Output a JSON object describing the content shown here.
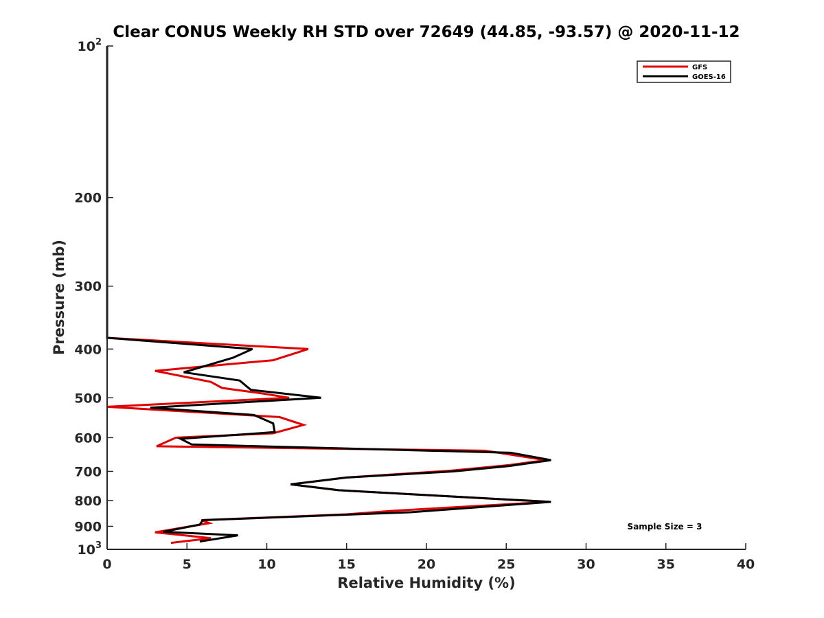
{
  "chart_data": {
    "type": "line",
    "title": "Clear CONUS Weekly RH STD over 72649 (44.85, -93.57) @ 2020-11-12",
    "xlabel": "Relative Humidity (%)",
    "ylabel": "Pressure (mb)",
    "xlim": [
      0,
      40
    ],
    "ylim": [
      100,
      1000
    ],
    "yscale": "log",
    "y_reversed": true,
    "grid": false,
    "legend_position": "top-right",
    "x_ticks": [
      {
        "value": 0,
        "label": "0"
      },
      {
        "value": 5,
        "label": "5"
      },
      {
        "value": 10,
        "label": "10"
      },
      {
        "value": 15,
        "label": "15"
      },
      {
        "value": 20,
        "label": "20"
      },
      {
        "value": 25,
        "label": "25"
      },
      {
        "value": 30,
        "label": "30"
      },
      {
        "value": 35,
        "label": "35"
      },
      {
        "value": 40,
        "label": "40"
      }
    ],
    "y_ticks": [
      {
        "value": 100,
        "label": "10",
        "exp": "2"
      },
      {
        "value": 200,
        "label": "200"
      },
      {
        "value": 300,
        "label": "300"
      },
      {
        "value": 400,
        "label": "400"
      },
      {
        "value": 500,
        "label": "500"
      },
      {
        "value": 600,
        "label": "600"
      },
      {
        "value": 700,
        "label": "700"
      },
      {
        "value": 800,
        "label": "800"
      },
      {
        "value": 900,
        "label": "900"
      },
      {
        "value": 1000,
        "label": "10",
        "exp": "3"
      }
    ],
    "annotation": "Sample Size = 3",
    "series": [
      {
        "name": "GFS",
        "color": "#e00000",
        "points": [
          [
            0,
            100
          ],
          [
            0,
            380
          ],
          [
            12.6,
            400
          ],
          [
            10.4,
            421
          ],
          [
            3.0,
            442
          ],
          [
            6.5,
            465
          ],
          [
            7.2,
            478
          ],
          [
            9.7,
            490
          ],
          [
            11.4,
            500
          ],
          [
            0,
            521
          ],
          [
            10.8,
            546
          ],
          [
            12.3,
            566
          ],
          [
            10.4,
            588
          ],
          [
            4.3,
            600
          ],
          [
            3.1,
            624
          ],
          [
            23.7,
            637
          ],
          [
            27.5,
            665
          ],
          [
            25.2,
            680
          ],
          [
            21.5,
            698
          ],
          [
            15.0,
            720
          ],
          [
            11.5,
            743
          ],
          [
            14.5,
            763
          ],
          [
            27.7,
            805
          ],
          [
            18.0,
            838
          ],
          [
            15.0,
            852
          ],
          [
            5.9,
            875
          ],
          [
            6.4,
            887
          ],
          [
            3.0,
            925
          ],
          [
            6.5,
            950
          ],
          [
            4.0,
            971
          ]
        ]
      },
      {
        "name": "GOES-16",
        "color": "#000000",
        "points": [
          [
            0,
            100
          ],
          [
            0,
            380
          ],
          [
            9.1,
            400
          ],
          [
            7.9,
            416
          ],
          [
            4.8,
            445
          ],
          [
            8.3,
            462
          ],
          [
            9.0,
            482
          ],
          [
            13.4,
            500
          ],
          [
            2.7,
            523
          ],
          [
            9.2,
            541
          ],
          [
            10.4,
            562
          ],
          [
            10.5,
            585
          ],
          [
            4.6,
            603
          ],
          [
            5.3,
            619
          ],
          [
            25.3,
            643
          ],
          [
            27.8,
            665
          ],
          [
            25.2,
            683
          ],
          [
            21.7,
            700
          ],
          [
            15.0,
            720
          ],
          [
            11.5,
            743
          ],
          [
            14.5,
            763
          ],
          [
            27.8,
            805
          ],
          [
            19.0,
            844
          ],
          [
            6.0,
            875
          ],
          [
            5.8,
            893
          ],
          [
            3.5,
            923
          ],
          [
            8.2,
            938
          ],
          [
            5.8,
            965
          ]
        ]
      }
    ]
  }
}
